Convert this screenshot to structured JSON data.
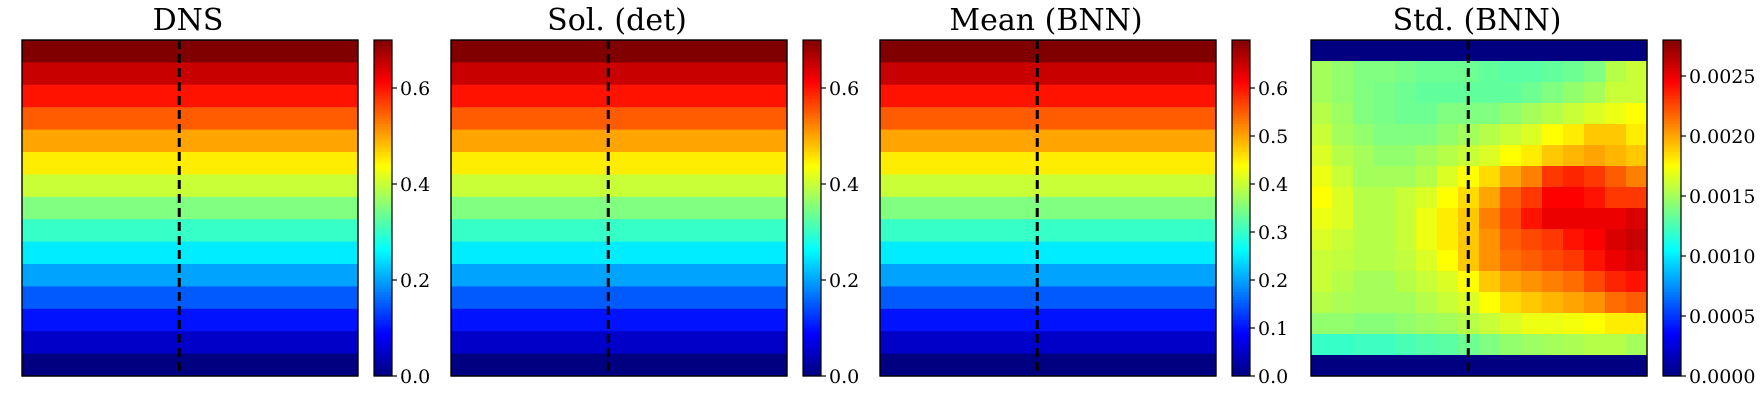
{
  "figure": {
    "panels": [
      {
        "title": "DNS"
      },
      {
        "title": "Sol. (det)"
      },
      {
        "title": "Mean (BNN)"
      },
      {
        "title": "Std. (BNN)"
      }
    ]
  },
  "chart_data": [
    {
      "type": "heatmap",
      "title": "DNS",
      "grid": false,
      "dashed_vertical_line": true,
      "colormap": "jet",
      "colorbar_range": [
        0.0,
        0.7
      ],
      "colorbar_ticks": [
        "0.0",
        "0.2",
        "0.4",
        "0.6"
      ],
      "colorbar_tick_values": [
        0.0,
        0.2,
        0.4,
        0.6
      ],
      "rows_top_to_bottom": [
        0.7,
        0.65,
        0.6,
        0.55,
        0.5,
        0.45,
        0.4,
        0.35,
        0.3,
        0.25,
        0.2,
        0.15,
        0.1,
        0.05,
        0.0
      ],
      "column_variation": null
    },
    {
      "type": "heatmap",
      "title": "Sol. (det)",
      "grid": false,
      "dashed_vertical_line": true,
      "colormap": "jet",
      "colorbar_range": [
        0.0,
        0.7
      ],
      "colorbar_ticks": [
        "0.0",
        "0.2",
        "0.4",
        "0.6"
      ],
      "colorbar_tick_values": [
        0.0,
        0.2,
        0.4,
        0.6
      ],
      "rows_top_to_bottom": [
        0.7,
        0.65,
        0.6,
        0.55,
        0.5,
        0.45,
        0.4,
        0.35,
        0.3,
        0.25,
        0.2,
        0.15,
        0.1,
        0.05,
        0.0
      ],
      "column_variation": null
    },
    {
      "type": "heatmap",
      "title": "Mean (BNN)",
      "grid": false,
      "dashed_vertical_line": true,
      "colormap": "jet",
      "colorbar_range": [
        0.0,
        0.7
      ],
      "colorbar_ticks": [
        "0.0",
        "0.1",
        "0.2",
        "0.3",
        "0.4",
        "0.5",
        "0.6"
      ],
      "colorbar_tick_values": [
        0.0,
        0.1,
        0.2,
        0.3,
        0.4,
        0.5,
        0.6
      ],
      "rows_top_to_bottom": [
        0.7,
        0.65,
        0.6,
        0.55,
        0.5,
        0.45,
        0.4,
        0.35,
        0.3,
        0.25,
        0.2,
        0.15,
        0.1,
        0.05,
        0.0
      ],
      "column_variation": null
    },
    {
      "type": "heatmap",
      "title": "Std. (BNN)",
      "grid": false,
      "dashed_vertical_line": true,
      "colormap": "jet",
      "colorbar_range": [
        0.0,
        0.0028
      ],
      "colorbar_ticks": [
        "0.0000",
        "0.0005",
        "0.0010",
        "0.0015",
        "0.0020",
        "0.0025"
      ],
      "colorbar_tick_values": [
        0.0,
        0.0005,
        0.001,
        0.0015,
        0.002,
        0.0025
      ],
      "values": [
        [
          0.0,
          0.0,
          0.0,
          0.0,
          0.0,
          0.0,
          0.0,
          0.0,
          0.0,
          0.0,
          0.0,
          0.0,
          0.0,
          0.0,
          0.0,
          0.0
        ],
        [
          0.0015,
          0.00145,
          0.0014,
          0.0014,
          0.00138,
          0.00135,
          0.00135,
          0.00135,
          0.00132,
          0.0013,
          0.0013,
          0.00132,
          0.00135,
          0.0014,
          0.00155,
          0.0016
        ],
        [
          0.0015,
          0.00145,
          0.0014,
          0.00138,
          0.00135,
          0.00132,
          0.00132,
          0.00132,
          0.00132,
          0.00132,
          0.00135,
          0.0014,
          0.00145,
          0.0015,
          0.0016,
          0.0016
        ],
        [
          0.00155,
          0.00148,
          0.0014,
          0.00138,
          0.00135,
          0.00135,
          0.0014,
          0.0014,
          0.0014,
          0.00145,
          0.0015,
          0.00155,
          0.0016,
          0.00165,
          0.0017,
          0.00175
        ],
        [
          0.0016,
          0.0015,
          0.00145,
          0.0014,
          0.0014,
          0.0014,
          0.00145,
          0.0015,
          0.00155,
          0.0016,
          0.00165,
          0.00175,
          0.0018,
          0.0019,
          0.0019,
          0.0018
        ],
        [
          0.00165,
          0.00155,
          0.0015,
          0.00145,
          0.00145,
          0.0015,
          0.00155,
          0.0016,
          0.00165,
          0.00175,
          0.0018,
          0.0019,
          0.00195,
          0.002,
          0.00195,
          0.0019
        ],
        [
          0.0017,
          0.0016,
          0.0015,
          0.0015,
          0.0015,
          0.00155,
          0.00165,
          0.00175,
          0.00185,
          0.002,
          0.0021,
          0.0023,
          0.00235,
          0.0023,
          0.0022,
          0.0021
        ],
        [
          0.00175,
          0.00165,
          0.00155,
          0.00155,
          0.0016,
          0.00165,
          0.00175,
          0.00185,
          0.002,
          0.0022,
          0.0023,
          0.00245,
          0.00245,
          0.0024,
          0.0023,
          0.0023
        ],
        [
          0.0017,
          0.00165,
          0.00155,
          0.00155,
          0.0016,
          0.0017,
          0.0018,
          0.0019,
          0.0021,
          0.00225,
          0.0024,
          0.0025,
          0.0025,
          0.0025,
          0.0025,
          0.00255
        ],
        [
          0.00165,
          0.0016,
          0.00155,
          0.00155,
          0.0016,
          0.0017,
          0.0018,
          0.0019,
          0.00205,
          0.0022,
          0.00225,
          0.0023,
          0.0024,
          0.00245,
          0.00255,
          0.0026
        ],
        [
          0.0016,
          0.00158,
          0.00155,
          0.00155,
          0.00158,
          0.00165,
          0.00175,
          0.0019,
          0.00205,
          0.00215,
          0.0022,
          0.00225,
          0.0023,
          0.0024,
          0.0025,
          0.00255
        ],
        [
          0.0016,
          0.00155,
          0.0015,
          0.0015,
          0.00155,
          0.0016,
          0.00165,
          0.00175,
          0.0019,
          0.002,
          0.00205,
          0.0021,
          0.00215,
          0.00225,
          0.00235,
          0.0024
        ],
        [
          0.00155,
          0.00152,
          0.0015,
          0.0015,
          0.0015,
          0.00155,
          0.0016,
          0.00165,
          0.00175,
          0.00185,
          0.0019,
          0.00195,
          0.002,
          0.00205,
          0.00215,
          0.0022
        ],
        [
          0.00145,
          0.00145,
          0.00142,
          0.00142,
          0.00145,
          0.00148,
          0.0015,
          0.00155,
          0.0016,
          0.00165,
          0.0017,
          0.0017,
          0.00172,
          0.00175,
          0.0018,
          0.0018
        ],
        [
          0.0012,
          0.0012,
          0.00122,
          0.00122,
          0.00125,
          0.00128,
          0.0013,
          0.00135,
          0.0014,
          0.00145,
          0.00148,
          0.0015,
          0.00152,
          0.00155,
          0.00155,
          0.0015
        ],
        [
          0.0,
          0.0,
          0.0,
          0.0,
          0.0,
          0.0,
          0.0,
          0.0,
          0.0,
          0.0,
          0.0,
          0.0,
          0.0,
          0.0,
          0.0,
          0.0
        ]
      ]
    }
  ]
}
